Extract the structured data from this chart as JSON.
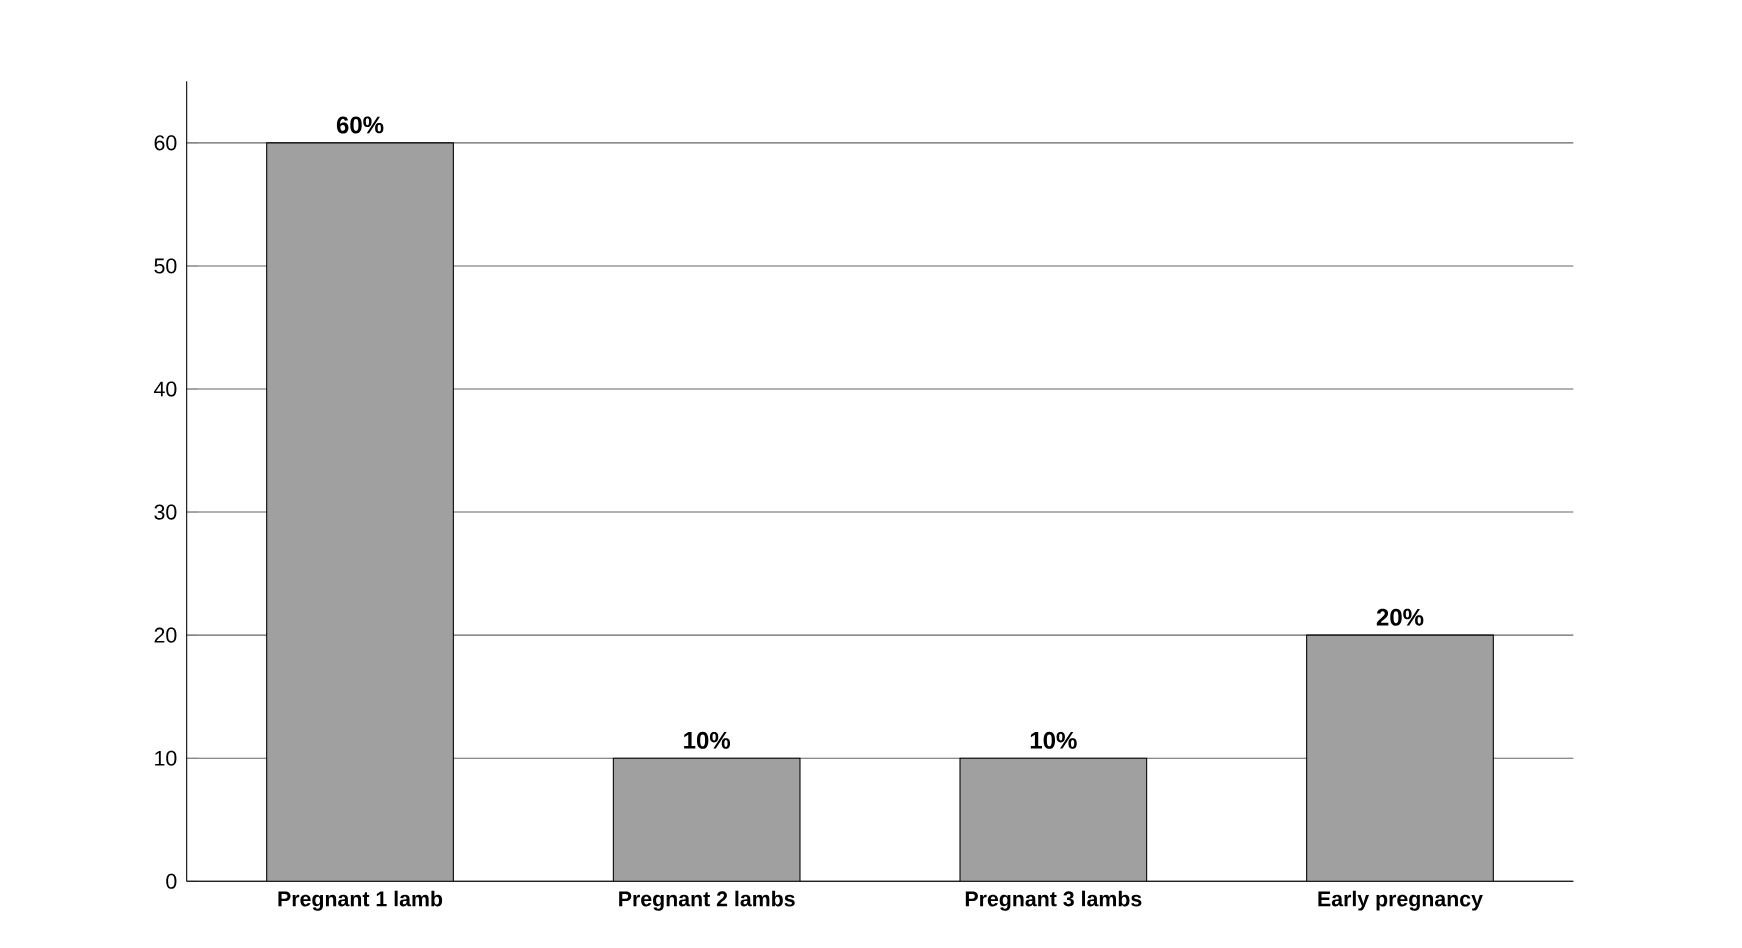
{
  "chart_data": {
    "type": "bar",
    "categories": [
      "Pregnant 1 lamb",
      "Pregnant 2 lambs",
      "Pregnant 3 lambs",
      "Early pregnancy"
    ],
    "values": [
      60,
      10,
      10,
      20
    ],
    "value_labels": [
      "60%",
      "10%",
      "10%",
      "20%"
    ],
    "color": "#a0a0a0",
    "ylim": [
      0,
      65
    ],
    "yticks": [
      0,
      10,
      20,
      30,
      40,
      50,
      60
    ],
    "grid": "y"
  }
}
